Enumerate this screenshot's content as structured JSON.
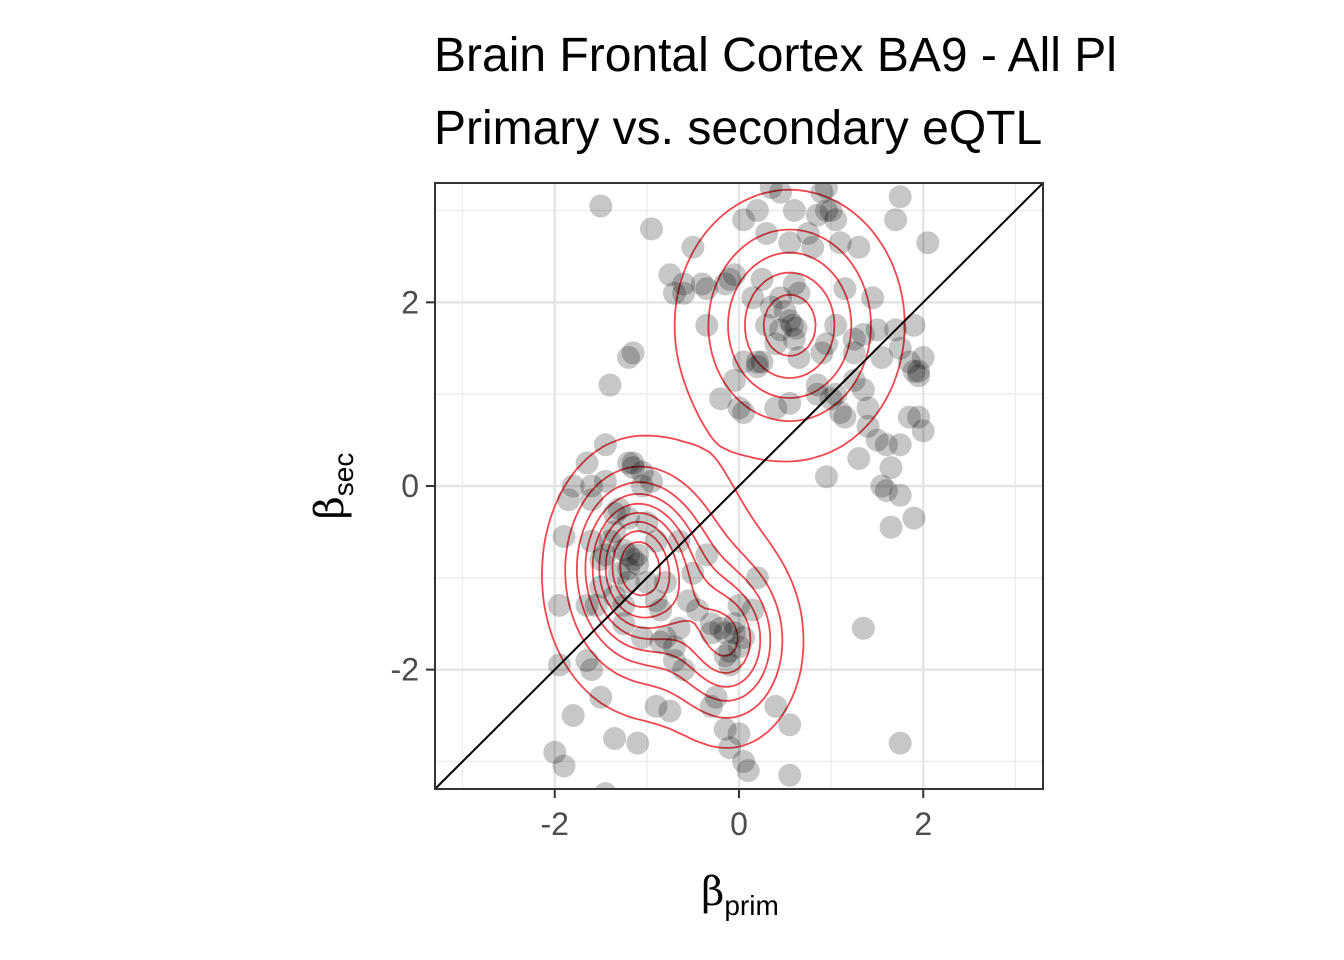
{
  "chart_data": {
    "type": "scatter",
    "title": "Brain Frontal Cortex BA9 - All Pl",
    "subtitle": "Primary vs. secondary eQTL",
    "xlabel": {
      "symbol": "β",
      "subscript": "prim"
    },
    "ylabel": {
      "symbol": "β",
      "subscript": "sec"
    },
    "xlim": [
      -3.3,
      3.3
    ],
    "ylim": [
      -3.3,
      3.3
    ],
    "x_ticks": [
      -2,
      0,
      2
    ],
    "y_ticks": [
      -2,
      0,
      2
    ],
    "x_tick_labels": [
      "-2",
      "0",
      "2"
    ],
    "y_tick_labels": [
      "-2",
      "0",
      "2"
    ],
    "grid": true,
    "reference_line": {
      "slope": 1,
      "intercept": 0,
      "color": "#000000"
    },
    "point_color": "#000000",
    "point_opacity": 0.22,
    "contour_color": "#f0474f",
    "density_centers": [
      {
        "x": 0.55,
        "y": 1.75,
        "sx": 0.55,
        "sy": 0.65
      },
      {
        "x": -0.95,
        "y": -1.05,
        "sx": 0.5,
        "sy": 0.65
      },
      {
        "x": -1.15,
        "y": -0.8,
        "sx": 0.35,
        "sy": 0.5
      },
      {
        "x": -0.1,
        "y": -1.7,
        "sx": 0.35,
        "sy": 0.5
      }
    ],
    "points": [
      [
        -1.5,
        3.05
      ],
      [
        -0.95,
        2.8
      ],
      [
        0.35,
        3.25
      ],
      [
        0.45,
        3.2
      ],
      [
        0.95,
        3.25
      ],
      [
        0.9,
        3.2
      ],
      [
        1.75,
        3.15
      ],
      [
        0.85,
        2.95
      ],
      [
        0.95,
        3.0
      ],
      [
        1.0,
        3.0
      ],
      [
        0.6,
        3.0
      ],
      [
        0.2,
        3.0
      ],
      [
        0.05,
        2.9
      ],
      [
        0.3,
        2.75
      ],
      [
        0.75,
        2.75
      ],
      [
        1.7,
        2.9
      ],
      [
        1.05,
        2.9
      ],
      [
        0.55,
        2.65
      ],
      [
        0.8,
        2.6
      ],
      [
        1.1,
        2.65
      ],
      [
        1.3,
        2.6
      ],
      [
        2.05,
        2.65
      ],
      [
        -0.5,
        2.6
      ],
      [
        -0.75,
        2.3
      ],
      [
        -0.6,
        2.1
      ],
      [
        -0.7,
        2.1
      ],
      [
        -0.4,
        2.2
      ],
      [
        -0.15,
        2.2
      ],
      [
        -0.05,
        2.3
      ],
      [
        -0.1,
        2.25
      ],
      [
        -0.35,
        2.15
      ],
      [
        0.25,
        2.25
      ],
      [
        0.45,
        2.05
      ],
      [
        0.6,
        2.2
      ],
      [
        0.65,
        2.1
      ],
      [
        0.15,
        2.05
      ],
      [
        0.35,
        1.95
      ],
      [
        0.5,
        1.9
      ],
      [
        0.55,
        1.8
      ],
      [
        0.58,
        1.75
      ],
      [
        0.62,
        1.72
      ],
      [
        0.45,
        1.7
      ],
      [
        0.3,
        1.75
      ],
      [
        0.4,
        1.55
      ],
      [
        0.6,
        1.6
      ],
      [
        0.65,
        1.4
      ],
      [
        0.2,
        1.35
      ],
      [
        0.25,
        1.35
      ],
      [
        0.2,
        1.3
      ],
      [
        0.05,
        1.35
      ],
      [
        1.05,
        1.75
      ],
      [
        1.15,
        2.15
      ],
      [
        1.45,
        2.05
      ],
      [
        1.35,
        1.65
      ],
      [
        1.25,
        1.6
      ],
      [
        1.5,
        1.7
      ],
      [
        1.7,
        1.7
      ],
      [
        1.9,
        1.75
      ],
      [
        1.55,
        1.4
      ],
      [
        1.75,
        1.5
      ],
      [
        1.85,
        1.35
      ],
      [
        2.0,
        1.4
      ],
      [
        1.95,
        1.25
      ],
      [
        1.9,
        1.25
      ],
      [
        1.95,
        1.2
      ],
      [
        0.95,
        1.55
      ],
      [
        1.25,
        1.45
      ],
      [
        0.9,
        1.45
      ],
      [
        1.35,
        1.05
      ],
      [
        1.05,
        1.0
      ],
      [
        1.4,
        0.85
      ],
      [
        1.1,
        0.8
      ],
      [
        1.15,
        0.75
      ],
      [
        1.4,
        0.65
      ],
      [
        1.5,
        0.5
      ],
      [
        1.6,
        0.45
      ],
      [
        1.75,
        0.45
      ],
      [
        1.3,
        0.3
      ],
      [
        1.85,
        0.75
      ],
      [
        2.0,
        0.6
      ],
      [
        1.95,
        0.75
      ],
      [
        1.65,
        0.2
      ],
      [
        1.55,
        0.0
      ],
      [
        1.6,
        -0.05
      ],
      [
        1.75,
        -0.1
      ],
      [
        1.65,
        -0.45
      ],
      [
        1.9,
        -0.35
      ],
      [
        0.95,
        0.1
      ],
      [
        -0.35,
        1.75
      ],
      [
        -0.6,
        2.2
      ],
      [
        -1.2,
        1.4
      ],
      [
        -1.15,
        1.45
      ],
      [
        -1.4,
        1.1
      ],
      [
        -0.05,
        1.15
      ],
      [
        0.0,
        0.85
      ],
      [
        0.05,
        0.8
      ],
      [
        0.4,
        0.85
      ],
      [
        0.55,
        0.9
      ],
      [
        0.85,
        1.1
      ],
      [
        -1.45,
        0.45
      ],
      [
        -1.65,
        0.25
      ],
      [
        -1.6,
        0.0
      ],
      [
        -1.45,
        0.05
      ],
      [
        -1.2,
        0.25
      ],
      [
        -1.15,
        0.25
      ],
      [
        -1.15,
        0.2
      ],
      [
        -1.05,
        0.15
      ],
      [
        -0.95,
        0.05
      ],
      [
        -1.05,
        0.0
      ],
      [
        -1.8,
        0.0
      ],
      [
        -1.85,
        -0.15
      ],
      [
        -1.6,
        -0.15
      ],
      [
        -1.3,
        -0.25
      ],
      [
        -1.35,
        -0.3
      ],
      [
        -1.2,
        -0.35
      ],
      [
        -1.0,
        -0.4
      ],
      [
        -1.35,
        -0.5
      ],
      [
        -1.4,
        -0.6
      ],
      [
        -1.6,
        -0.6
      ],
      [
        -1.9,
        -0.55
      ],
      [
        -1.45,
        -0.75
      ],
      [
        -1.5,
        -0.8
      ],
      [
        -1.25,
        -0.7
      ],
      [
        -1.2,
        -0.75
      ],
      [
        -1.1,
        -0.75
      ],
      [
        -1.15,
        -0.8
      ],
      [
        -1.1,
        -0.85
      ],
      [
        -1.2,
        -0.9
      ],
      [
        -1.3,
        -0.95
      ],
      [
        -0.9,
        -0.6
      ],
      [
        -0.65,
        -0.6
      ],
      [
        -0.35,
        -0.75
      ],
      [
        -0.5,
        -0.95
      ],
      [
        -0.8,
        -1.05
      ],
      [
        -1.0,
        -1.05
      ],
      [
        -1.2,
        -1.05
      ],
      [
        -1.5,
        -1.1
      ],
      [
        -1.35,
        -1.2
      ],
      [
        -1.55,
        -1.3
      ],
      [
        -1.65,
        -1.3
      ],
      [
        -1.95,
        -1.3
      ],
      [
        -0.9,
        -1.25
      ],
      [
        -0.85,
        -1.35
      ],
      [
        -0.55,
        -1.25
      ],
      [
        -1.25,
        -1.5
      ],
      [
        -1.05,
        -1.65
      ],
      [
        -0.85,
        -1.7
      ],
      [
        -0.8,
        -1.65
      ],
      [
        -0.7,
        -1.75
      ],
      [
        -0.7,
        -1.9
      ],
      [
        -0.3,
        -1.5
      ],
      [
        -0.2,
        -1.55
      ],
      [
        -0.15,
        -1.6
      ],
      [
        -0.05,
        -1.5
      ],
      [
        0.05,
        -1.65
      ],
      [
        0.0,
        -1.75
      ],
      [
        -0.1,
        -1.8
      ],
      [
        -0.15,
        -1.85
      ],
      [
        -0.05,
        -1.6
      ],
      [
        -0.1,
        -1.95
      ],
      [
        -0.45,
        -1.35
      ],
      [
        -0.3,
        -1.6
      ],
      [
        0.15,
        -1.35
      ],
      [
        0.2,
        -1.0
      ],
      [
        -0.6,
        -2.0
      ],
      [
        -1.95,
        -1.95
      ],
      [
        -1.65,
        -1.9
      ],
      [
        -1.6,
        -2.0
      ],
      [
        -1.5,
        -2.3
      ],
      [
        -1.8,
        -2.5
      ],
      [
        -0.9,
        -2.4
      ],
      [
        -0.75,
        -2.45
      ],
      [
        -0.25,
        -2.3
      ],
      [
        -0.15,
        -2.65
      ],
      [
        0.4,
        -2.4
      ],
      [
        0.55,
        -2.6
      ],
      [
        -1.35,
        -2.75
      ],
      [
        -1.1,
        -2.8
      ],
      [
        -2.0,
        -2.9
      ],
      [
        -1.9,
        -3.05
      ],
      [
        -1.45,
        -3.35
      ],
      [
        -0.1,
        -2.85
      ],
      [
        0.05,
        -3.0
      ],
      [
        0.1,
        -3.1
      ],
      [
        0.55,
        -3.15
      ],
      [
        1.35,
        -1.55
      ],
      [
        1.75,
        -2.8
      ],
      [
        0.0,
        -2.7
      ],
      [
        -0.3,
        -2.4
      ],
      [
        -1.25,
        -1.3
      ],
      [
        -0.65,
        -1.55
      ],
      [
        0.0,
        -1.3
      ],
      [
        1.0,
        0.95
      ],
      [
        1.25,
        1.15
      ],
      [
        -0.2,
        0.95
      ],
      [
        0.85,
        1.0
      ]
    ]
  }
}
